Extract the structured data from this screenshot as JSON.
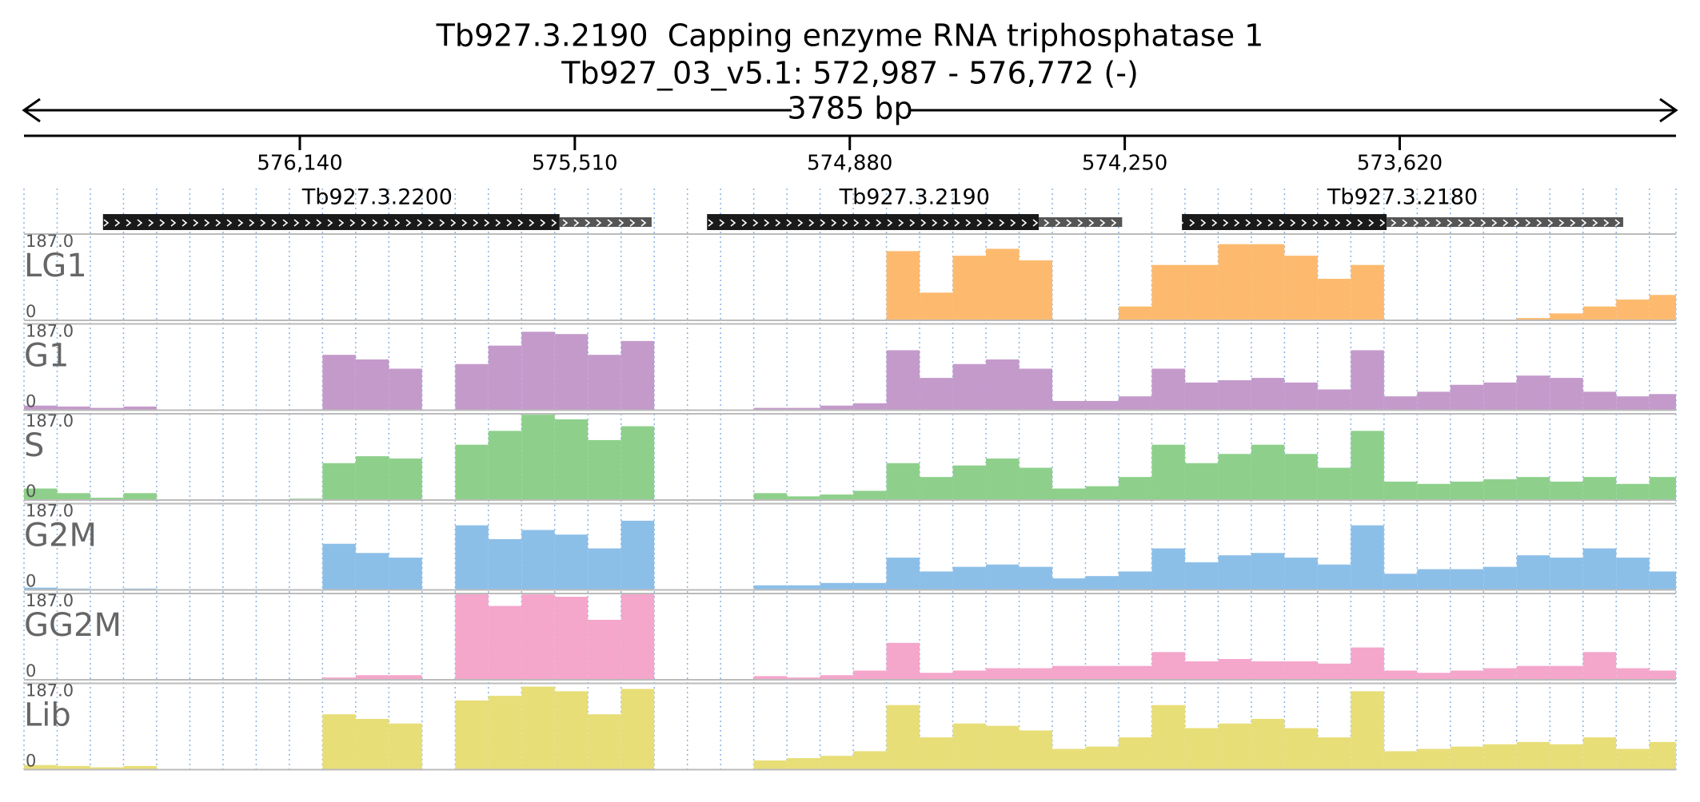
{
  "chart_data": {
    "type": "coverage",
    "title": "Tb927.3.2190  Capping enzyme RNA triphosphatase 1",
    "subtitle": "Tb927_03_v5.1: 572,987 - 576,772 (-)",
    "span_label": "3785 bp",
    "xlim": [
      576772,
      572987
    ],
    "xticks": [
      {
        "value": 576140,
        "label": "576,140"
      },
      {
        "value": 575510,
        "label": "575,510"
      },
      {
        "value": 574880,
        "label": "574,880"
      },
      {
        "value": 574250,
        "label": "574,250"
      },
      {
        "value": 573620,
        "label": "573,620"
      }
    ],
    "genes": [
      {
        "name": "Tb927.3.2200",
        "cds": [
          576591,
          575545
        ],
        "utr": [
          575545,
          575334
        ]
      },
      {
        "name": "Tb927.3.2190",
        "cds": [
          575207,
          574447
        ],
        "utr": [
          574447,
          574256
        ]
      },
      {
        "name": "Tb927.3.2180",
        "cds": [
          574119,
          573650
        ],
        "utr": [
          573650,
          573108
        ]
      }
    ],
    "bins": [
      576772,
      576696,
      576620,
      576544,
      576468,
      576392,
      576316,
      576240,
      576164,
      576088,
      576012,
      575936,
      575860,
      575784,
      575708,
      575632,
      575556,
      575480,
      575404,
      575328,
      575252,
      575176,
      575100,
      575024,
      574948,
      574872,
      574796,
      574720,
      574644,
      574568,
      574492,
      574416,
      574340,
      574264,
      574188,
      574112,
      574036,
      573960,
      573884,
      573808,
      573732,
      573656,
      573580,
      573504,
      573428,
      573352,
      573276,
      573200,
      573124,
      573048,
      572987
    ],
    "ylim": [
      0,
      187
    ],
    "yticks": [
      {
        "value": 187,
        "label": "187.0"
      },
      0
    ],
    "tracks": [
      {
        "name": "LG1",
        "color": "#fdba6e",
        "values": [
          0,
          0,
          0,
          0,
          0,
          0,
          0,
          0,
          0,
          0,
          0,
          0,
          0,
          0,
          0,
          0,
          0,
          0,
          0,
          0,
          0,
          0,
          0,
          0,
          0,
          0,
          150,
          60,
          140,
          155,
          130,
          0,
          0,
          30,
          120,
          120,
          165,
          165,
          140,
          90,
          120,
          0,
          0,
          0,
          0,
          5,
          15,
          30,
          45,
          55
        ]
      },
      {
        "name": "G1",
        "color": "#c49acb",
        "values": [
          10,
          8,
          5,
          8,
          0,
          0,
          0,
          0,
          2,
          120,
          110,
          90,
          0,
          100,
          140,
          170,
          165,
          120,
          150,
          0,
          0,
          0,
          5,
          5,
          10,
          15,
          130,
          70,
          100,
          110,
          90,
          20,
          20,
          30,
          90,
          60,
          65,
          70,
          60,
          45,
          130,
          30,
          40,
          55,
          60,
          75,
          70,
          40,
          30,
          35
        ]
      },
      {
        "name": "S",
        "color": "#8ed08b",
        "values": [
          25,
          15,
          5,
          15,
          0,
          0,
          0,
          0,
          3,
          80,
          95,
          90,
          0,
          120,
          150,
          185,
          175,
          130,
          160,
          0,
          0,
          0,
          15,
          8,
          12,
          20,
          80,
          50,
          75,
          90,
          70,
          25,
          30,
          50,
          120,
          80,
          100,
          120,
          100,
          70,
          150,
          40,
          35,
          40,
          45,
          50,
          40,
          50,
          35,
          50
        ]
      },
      {
        "name": "G2M",
        "color": "#8cbfe8",
        "values": [
          5,
          3,
          2,
          3,
          0,
          0,
          0,
          0,
          1,
          100,
          80,
          70,
          0,
          140,
          110,
          130,
          120,
          90,
          150,
          0,
          0,
          0,
          10,
          10,
          15,
          15,
          70,
          40,
          50,
          55,
          50,
          25,
          30,
          40,
          90,
          60,
          75,
          80,
          70,
          55,
          140,
          35,
          45,
          45,
          50,
          75,
          70,
          90,
          70,
          40
        ]
      },
      {
        "name": "GG2M",
        "color": "#f4a6cb",
        "values": [
          1,
          1,
          1,
          1,
          0,
          0,
          0,
          0,
          1,
          5,
          10,
          10,
          0,
          187,
          160,
          185,
          180,
          130,
          187,
          0,
          0,
          0,
          8,
          5,
          10,
          20,
          80,
          15,
          20,
          25,
          25,
          30,
          30,
          30,
          60,
          40,
          45,
          40,
          40,
          35,
          70,
          20,
          15,
          20,
          25,
          30,
          30,
          60,
          25,
          20
        ]
      },
      {
        "name": "Lib",
        "color": "#e8de78",
        "values": [
          10,
          8,
          5,
          8,
          0,
          0,
          0,
          0,
          0,
          120,
          110,
          100,
          0,
          150,
          160,
          180,
          170,
          120,
          175,
          0,
          0,
          0,
          20,
          25,
          30,
          40,
          140,
          70,
          100,
          95,
          85,
          45,
          50,
          70,
          140,
          90,
          100,
          110,
          90,
          70,
          170,
          40,
          45,
          50,
          55,
          60,
          55,
          70,
          45,
          60
        ]
      }
    ]
  }
}
